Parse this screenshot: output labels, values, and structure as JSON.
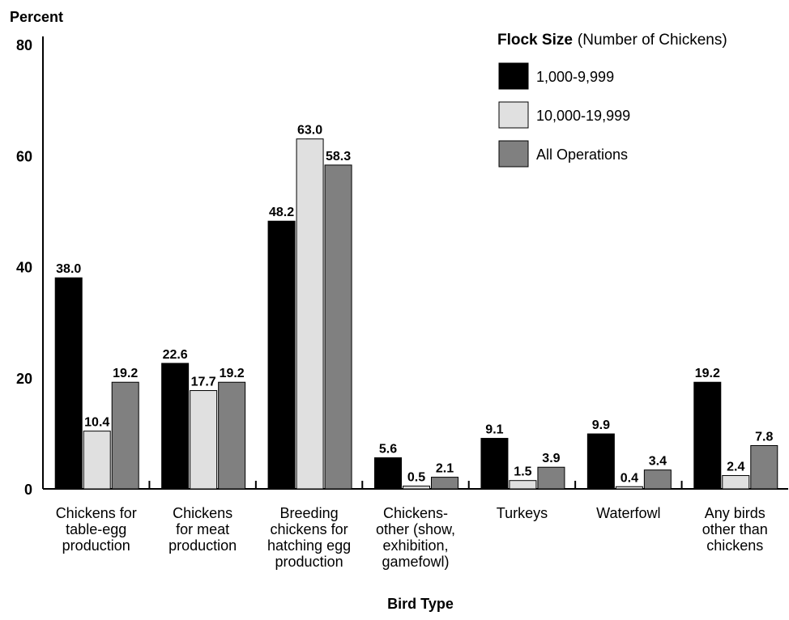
{
  "chart_data": {
    "type": "bar",
    "ylabel": "Percent",
    "xlabel": "Bird Type",
    "ylim": [
      0,
      80
    ],
    "yticks": [
      "0",
      "20",
      "40",
      "60",
      "80"
    ],
    "grid": false,
    "legend_placement": "top-right",
    "legend_title_bold": "Flock Size",
    "legend_title_rest": "(Number of Chickens)",
    "categories": [
      [
        "Chickens for",
        "table-egg",
        "production"
      ],
      [
        "Chickens",
        "for meat",
        "production"
      ],
      [
        "Breeding",
        "chickens for",
        "hatching egg",
        "production"
      ],
      [
        "Chickens-",
        "other (show,",
        "exhibition,",
        "gamefowl)"
      ],
      [
        "Turkeys"
      ],
      [
        "Waterfowl"
      ],
      [
        "Any birds",
        "other than",
        "chickens"
      ]
    ],
    "series": [
      {
        "name": "1,000-9,999",
        "color": "#000000",
        "values": [
          38.0,
          22.6,
          48.2,
          5.6,
          9.1,
          9.9,
          19.2
        ],
        "labels": [
          "38.0",
          "22.6",
          "48.2",
          "5.6",
          "9.1",
          "9.9",
          "19.2"
        ]
      },
      {
        "name": "10,000-19,999",
        "color": "#e0e0e0",
        "values": [
          10.4,
          17.7,
          63.0,
          0.5,
          1.5,
          0.4,
          2.4
        ],
        "labels": [
          "10.4",
          "17.7",
          "63.0",
          "0.5",
          "1.5",
          "0.4",
          "2.4"
        ]
      },
      {
        "name": "All Operations",
        "color": "#808080",
        "values": [
          19.2,
          19.2,
          58.3,
          2.1,
          3.9,
          3.4,
          7.8
        ],
        "labels": [
          "19.2",
          "19.2",
          "58.3",
          "2.1",
          "3.9",
          "3.4",
          "7.8"
        ]
      }
    ]
  }
}
